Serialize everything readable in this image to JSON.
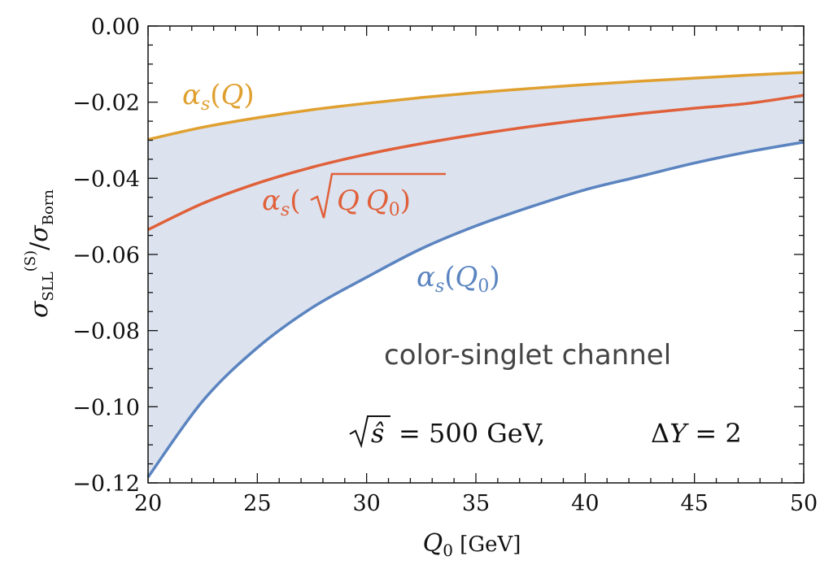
{
  "chart_data": {
    "type": "line",
    "xlabel": "Q0 [GeV]",
    "ylabel": "σSLL(S)/σBorn",
    "xlim": [
      20,
      50
    ],
    "ylim": [
      -0.12,
      0.0
    ],
    "xticks": [
      "20",
      "25",
      "30",
      "35",
      "40",
      "45",
      "50"
    ],
    "yticks": [
      "0.00",
      "−0.02",
      "−0.04",
      "−0.06",
      "−0.08",
      "−0.10",
      "−0.12"
    ],
    "grid": false,
    "x": [
      20,
      22.5,
      25,
      27.5,
      30,
      32.5,
      35,
      37.5,
      40,
      42.5,
      45,
      47.5,
      50
    ],
    "series": [
      {
        "name": "αs(Q)",
        "color": "#E0A030",
        "values": [
          -0.0298,
          -0.0266,
          -0.0241,
          -0.022,
          -0.0203,
          -0.0188,
          -0.0175,
          -0.0164,
          -0.0154,
          -0.0145,
          -0.0137,
          -0.0129,
          -0.0122
        ]
      },
      {
        "name": "αs(√(Q Q0))",
        "color": "#E0603A",
        "values": [
          -0.0535,
          -0.0466,
          -0.0413,
          -0.0371,
          -0.0337,
          -0.0309,
          -0.0285,
          -0.0264,
          -0.0246,
          -0.023,
          -0.0216,
          -0.0203,
          -0.0182
        ]
      },
      {
        "name": "αs(Q0)",
        "color": "#5B84C0",
        "values": [
          -0.1185,
          -0.0985,
          -0.0845,
          -0.074,
          -0.066,
          -0.0585,
          -0.0525,
          -0.0475,
          -0.043,
          -0.0395,
          -0.036,
          -0.033,
          -0.0305
        ]
      }
    ],
    "band": {
      "between": [
        "αs(Q)",
        "αs(Q0)"
      ],
      "color": "#DCE3EF"
    },
    "annotations": {
      "channel": "color-singlet channel",
      "kinematics_root": "√ŝ = 500 GeV,",
      "kinematics_dy": "ΔY = 2"
    },
    "series_label_text": {
      "alpha_q": "αs(Q)",
      "alpha_sqrt": "αs(√QQ0)",
      "alpha_q0": "αs(Q0)"
    }
  }
}
